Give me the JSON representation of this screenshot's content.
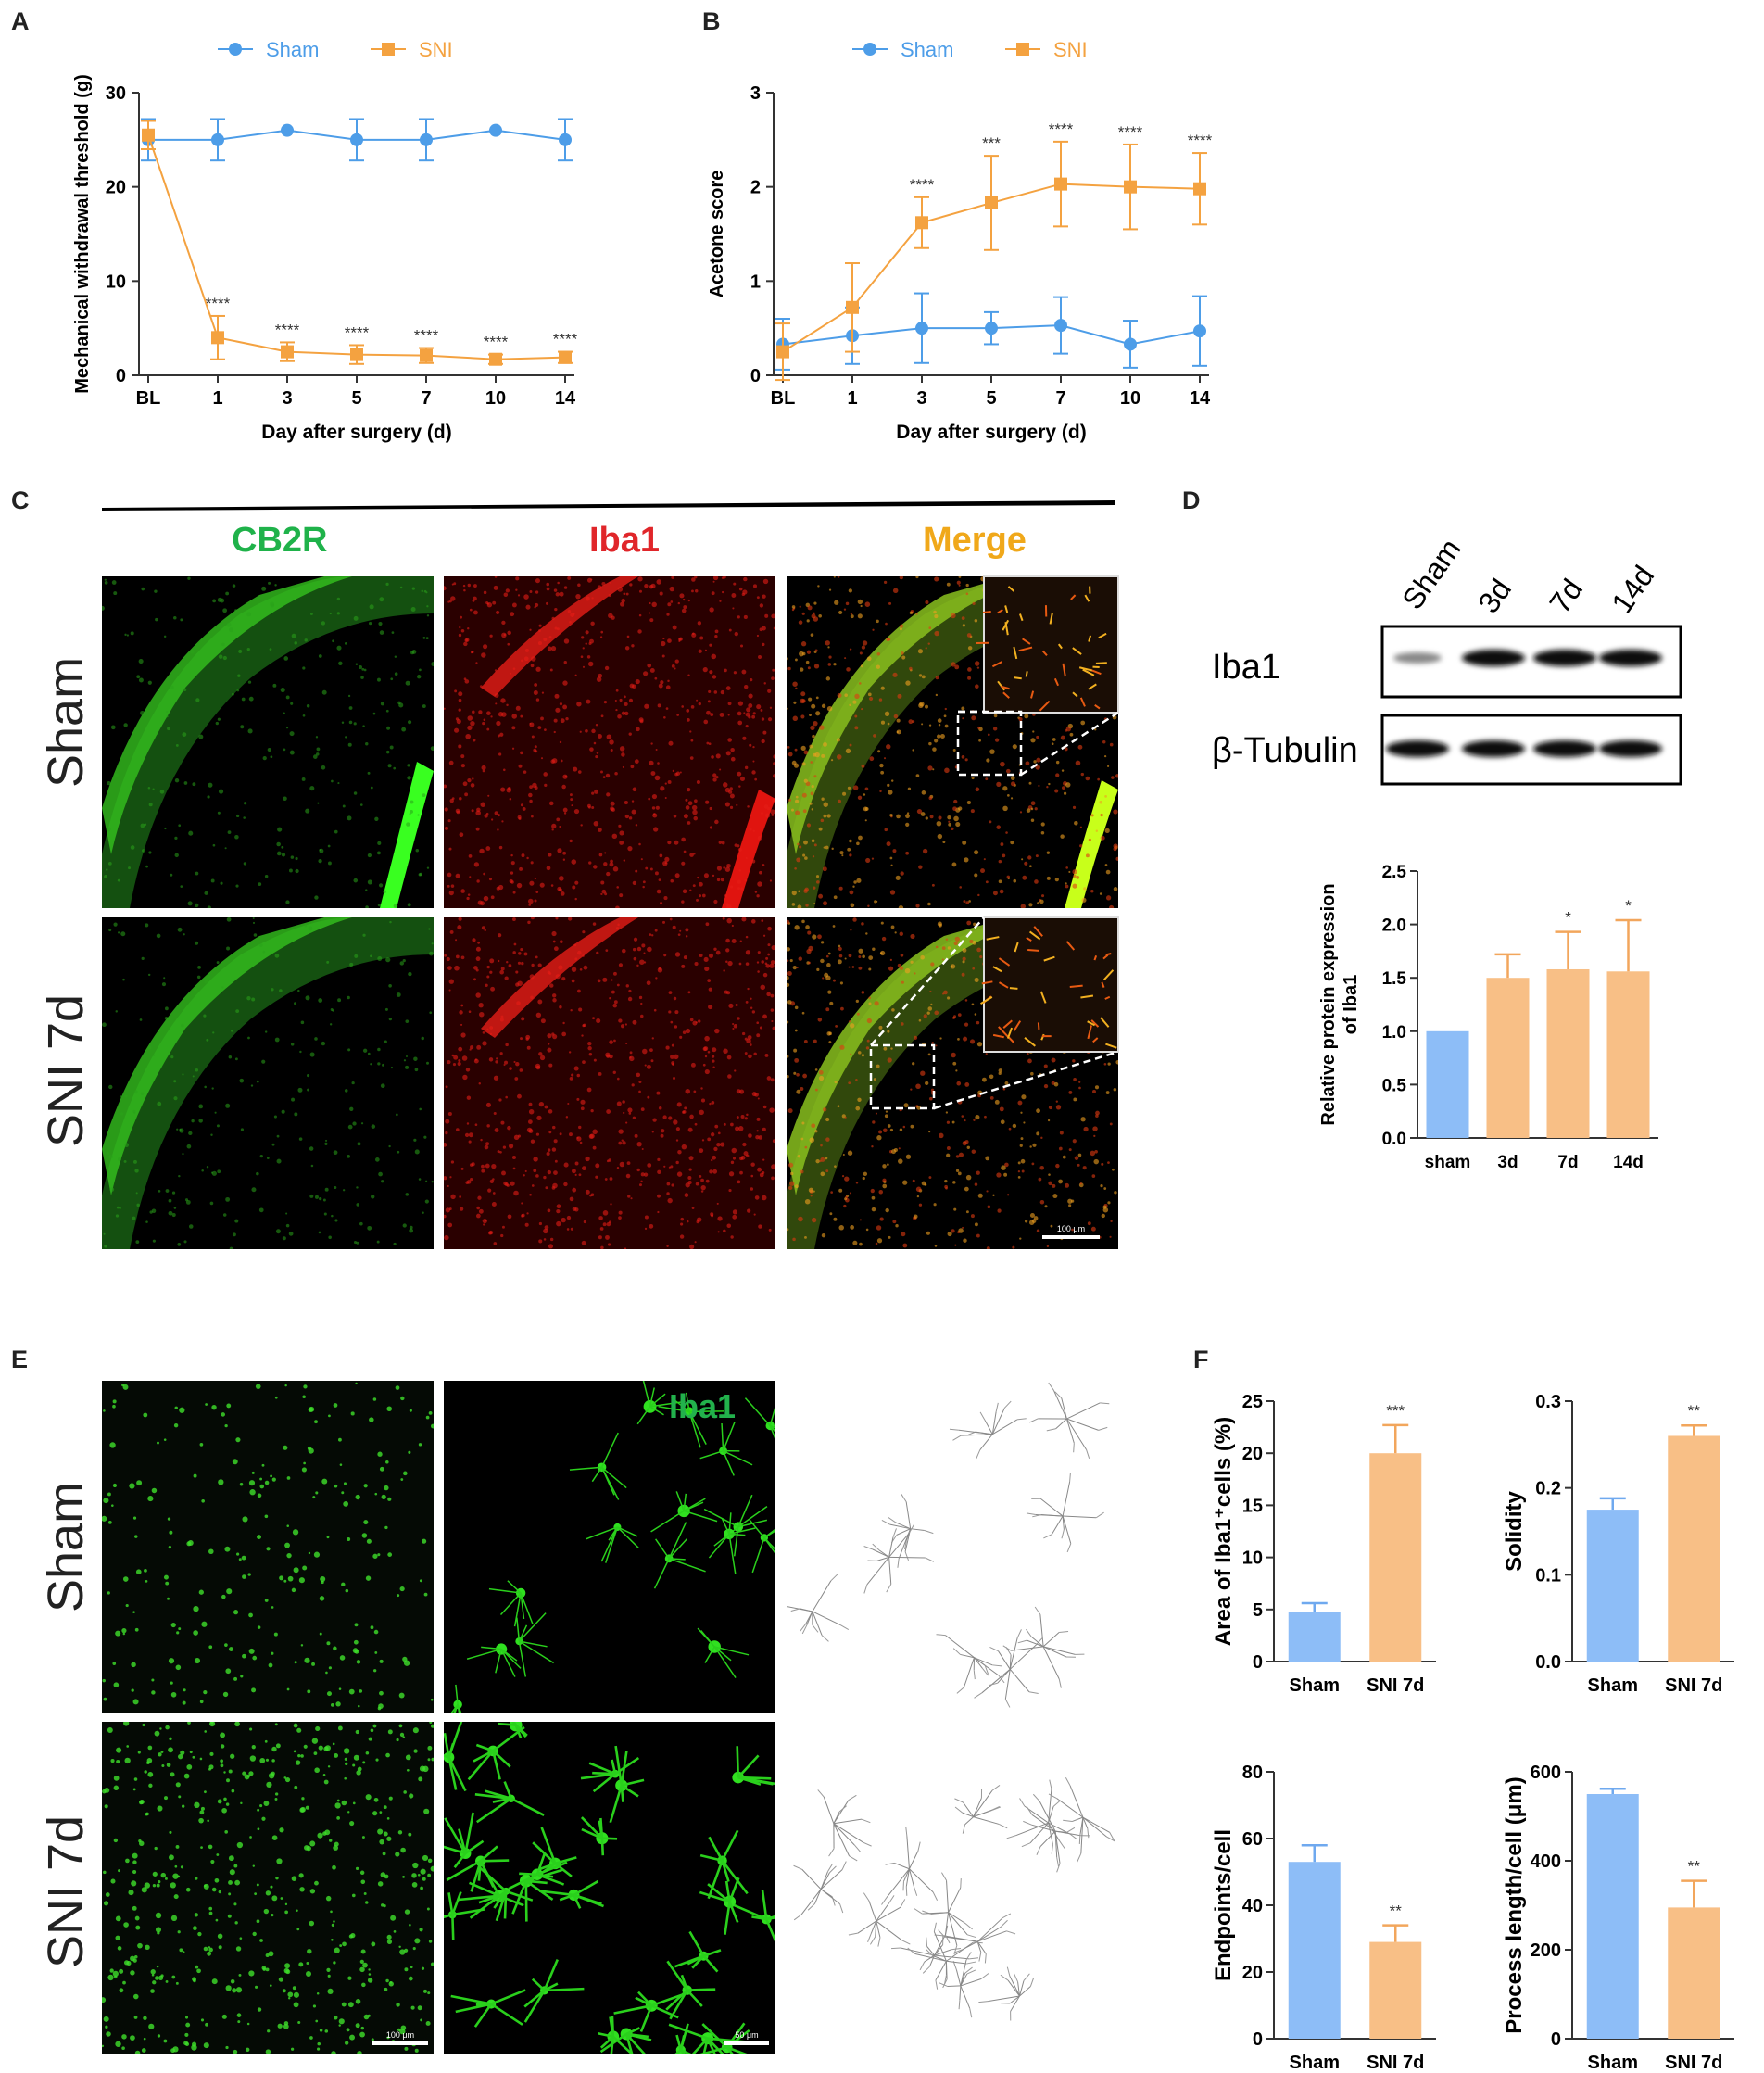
{
  "panels": {
    "A": "A",
    "B": "B",
    "C": "C",
    "D": "D",
    "E": "E",
    "F": "F"
  },
  "colors": {
    "sham": "#4d9de8",
    "sni": "#f4a240",
    "bar_sham": "#8dbdf7",
    "bar_sni": "#f8bf86",
    "cb2r_label": "#1fb24a",
    "iba1_label": "#e0262a",
    "merge_label": "#f0a81a"
  },
  "chart_data": [
    {
      "type": "line",
      "panel": "A",
      "xlabel": "Day after surgery (d)",
      "ylabel": "Mechanical withdrawal threshold (g)",
      "categories": [
        "BL",
        "1",
        "3",
        "5",
        "7",
        "10",
        "14"
      ],
      "ylim": [
        0,
        30
      ],
      "yticks": [
        "0",
        "10",
        "20",
        "30"
      ],
      "legend_placement": "top",
      "series": [
        {
          "name": "Sham",
          "values": [
            25,
            25,
            26,
            25,
            25,
            26,
            25
          ],
          "err": [
            2.2,
            2.2,
            0,
            2.2,
            2.2,
            0,
            2.2
          ]
        },
        {
          "name": "SNI",
          "values": [
            25.5,
            4.0,
            2.5,
            2.2,
            2.1,
            1.7,
            1.9
          ],
          "err": [
            1.5,
            2.3,
            1.0,
            1.0,
            0.8,
            0.5,
            0.6
          ]
        }
      ],
      "annotations": [
        "",
        "****",
        "****",
        "****",
        "****",
        "****",
        "****"
      ]
    },
    {
      "type": "line",
      "panel": "B",
      "xlabel": "Day after surgery (d)",
      "ylabel": "Acetone score",
      "categories": [
        "BL",
        "1",
        "3",
        "5",
        "7",
        "10",
        "14"
      ],
      "ylim": [
        0,
        3
      ],
      "yticks": [
        "0",
        "1",
        "2",
        "3"
      ],
      "legend_placement": "top",
      "series": [
        {
          "name": "Sham",
          "values": [
            0.33,
            0.42,
            0.5,
            0.5,
            0.53,
            0.33,
            0.47
          ],
          "err": [
            0.27,
            0.3,
            0.37,
            0.17,
            0.3,
            0.25,
            0.37
          ]
        },
        {
          "name": "SNI",
          "values": [
            0.25,
            0.72,
            1.62,
            1.83,
            2.03,
            2.0,
            1.98
          ],
          "err": [
            0.3,
            0.47,
            0.27,
            0.5,
            0.45,
            0.45,
            0.38
          ]
        }
      ],
      "annotations": [
        "",
        "",
        "****",
        "***",
        "****",
        "****",
        "****"
      ]
    },
    {
      "type": "bar",
      "panel": "D",
      "ylabel": "Relative protein expression of Iba1",
      "categories": [
        "sham",
        "3d",
        "7d",
        "14d"
      ],
      "values": [
        1.0,
        1.5,
        1.58,
        1.56
      ],
      "err": [
        0,
        0.22,
        0.35,
        0.48
      ],
      "annotations": [
        "",
        "",
        "*",
        "*"
      ],
      "ylim": [
        0,
        2.5
      ],
      "yticks": [
        "0.0",
        "0.5",
        "1.0",
        "1.5",
        "2.0",
        "2.5"
      ]
    },
    {
      "type": "bar",
      "panel": "F1",
      "ylabel": "Area of Iba1⁺cells (%)",
      "categories": [
        "Sham",
        "SNI 7d"
      ],
      "values": [
        4.8,
        20.0
      ],
      "err": [
        0.8,
        2.7
      ],
      "annotations": [
        "",
        "***"
      ],
      "ylim": [
        0,
        25
      ],
      "yticks": [
        "0",
        "5",
        "10",
        "15",
        "20",
        "25"
      ]
    },
    {
      "type": "bar",
      "panel": "F2",
      "ylabel": "Solidity",
      "categories": [
        "Sham",
        "SNI 7d"
      ],
      "values": [
        0.175,
        0.26
      ],
      "err": [
        0.013,
        0.012
      ],
      "annotations": [
        "",
        "**"
      ],
      "ylim": [
        0,
        0.3
      ],
      "yticks": [
        "0.0",
        "0.1",
        "0.2",
        "0.3"
      ]
    },
    {
      "type": "bar",
      "panel": "F3",
      "ylabel": "Endpoints/cell",
      "categories": [
        "Sham",
        "SNI 7d"
      ],
      "values": [
        53,
        29
      ],
      "err": [
        5,
        5
      ],
      "annotations": [
        "",
        "**"
      ],
      "ylim": [
        0,
        80
      ],
      "yticks": [
        "0",
        "20",
        "40",
        "60",
        "80"
      ]
    },
    {
      "type": "bar",
      "panel": "F4",
      "ylabel": "Process length/cell (μm)",
      "categories": [
        "Sham",
        "SNI 7d"
      ],
      "values": [
        550,
        295
      ],
      "err": [
        12,
        60
      ],
      "annotations": [
        "",
        "**"
      ],
      "ylim": [
        0,
        600
      ],
      "yticks": [
        "0",
        "200",
        "400",
        "600"
      ]
    }
  ],
  "panel_c": {
    "columns": [
      "CB2R",
      "Iba1",
      "Merge"
    ],
    "rows": [
      "Sham",
      "SNI 7d"
    ],
    "scale_bar": "100 μm"
  },
  "panel_d_blot": {
    "lanes": [
      "Sham",
      "3d",
      "7d",
      "14d"
    ],
    "proteins": [
      "Iba1",
      "β-Tubulin"
    ]
  },
  "panel_e": {
    "rows": [
      "Sham",
      "SNI 7d"
    ],
    "stain_label": "Iba1",
    "scale_bar_1": "100 μm",
    "scale_bar_2": "50 μm"
  }
}
